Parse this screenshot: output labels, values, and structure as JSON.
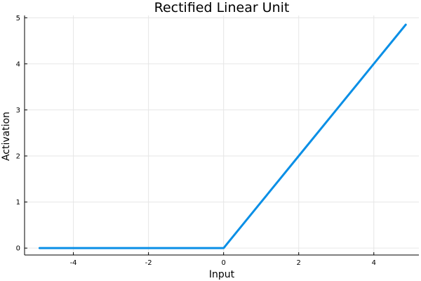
{
  "chart_data": {
    "type": "line",
    "title": "Rectified Linear Unit",
    "xlabel": "Input",
    "ylabel": "Activation",
    "xlim": [
      -5.3,
      5.2
    ],
    "ylim": [
      -0.15,
      5.05
    ],
    "xticks": [
      -4,
      -2,
      0,
      2,
      4
    ],
    "yticks": [
      0,
      1,
      2,
      3,
      4,
      5
    ],
    "grid": true,
    "legend": "none",
    "series": [
      {
        "color": "#0A8FE6",
        "x": [
          -4.9,
          -4.0,
          -3.0,
          -2.0,
          -1.0,
          0.0,
          0.1,
          1.0,
          2.0,
          3.0,
          4.0,
          4.85
        ],
        "y": [
          0,
          0,
          0,
          0,
          0,
          0,
          0.1,
          1.0,
          2.0,
          3.0,
          4.0,
          4.85
        ]
      }
    ]
  }
}
